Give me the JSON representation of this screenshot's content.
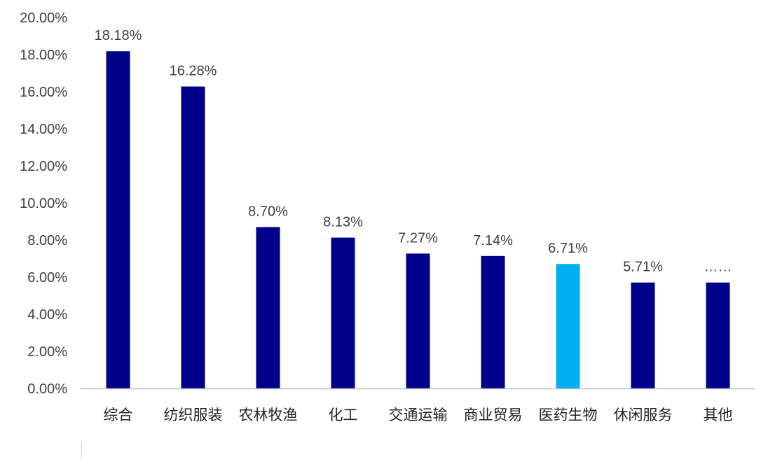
{
  "chart_data": {
    "type": "bar",
    "categories": [
      "综合",
      "纺织服装",
      "农林牧渔",
      "化工",
      "交通运输",
      "商业贸易",
      "医药生物",
      "休闲服务",
      "其他"
    ],
    "values": [
      18.18,
      16.28,
      8.7,
      8.13,
      7.27,
      7.14,
      6.71,
      5.71,
      5.71
    ],
    "data_labels": [
      "18.18%",
      "16.28%",
      "8.70%",
      "8.13%",
      "7.27%",
      "7.14%",
      "6.71%",
      "5.71%",
      "……"
    ],
    "colors": [
      "#00008B",
      "#00008B",
      "#00008B",
      "#00008B",
      "#00008B",
      "#00008B",
      "#00B0F0",
      "#00008B",
      "#00008B"
    ],
    "y_ticks": [
      "0.00%",
      "2.00%",
      "4.00%",
      "6.00%",
      "8.00%",
      "10.00%",
      "12.00%",
      "14.00%",
      "16.00%",
      "18.00%",
      "20.00%"
    ],
    "ylim": [
      0,
      20
    ],
    "grid": false,
    "title": "",
    "xlabel": "",
    "ylabel": ""
  }
}
